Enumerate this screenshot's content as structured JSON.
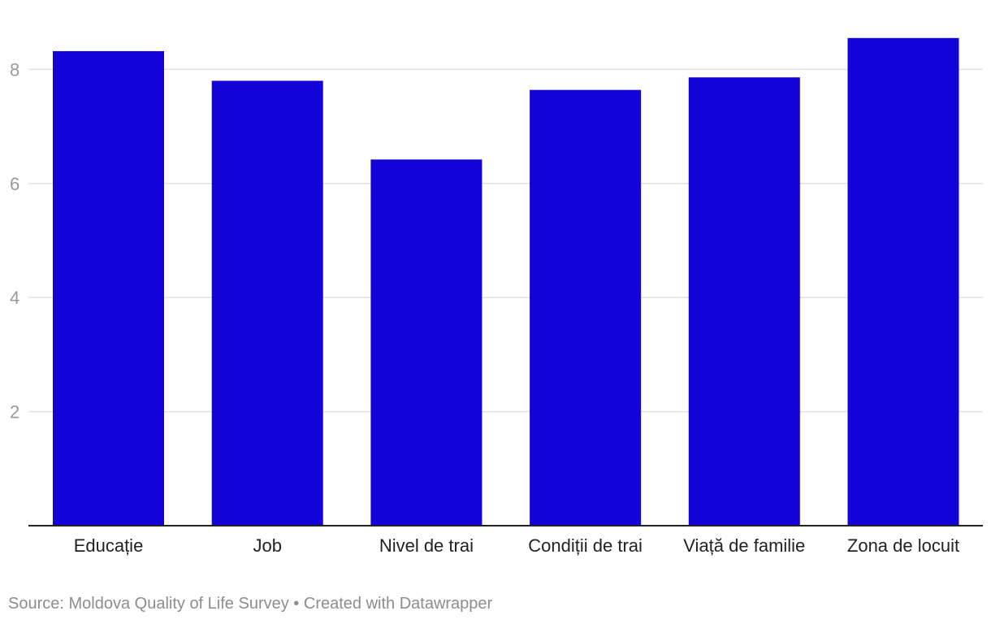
{
  "chart_data": {
    "type": "bar",
    "categories": [
      "Educație",
      "Job",
      "Nivel de trai",
      "Condiții de trai",
      "Viață de familie",
      "Zona de locuit"
    ],
    "values": [
      8.32,
      7.8,
      6.42,
      7.64,
      7.86,
      8.55
    ],
    "y_ticks": [
      2,
      4,
      6,
      8
    ],
    "ylim": [
      0,
      9
    ],
    "grid": true,
    "bar_color": "#1303d8"
  },
  "footer": {
    "source": "Source: Moldova Quality of Life Survey",
    "separator": "•",
    "credit": "Created with Datawrapper"
  }
}
